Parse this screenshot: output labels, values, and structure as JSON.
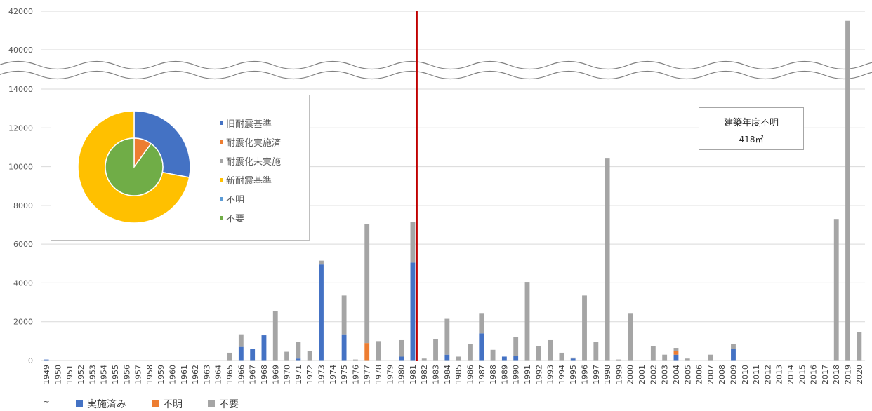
{
  "chart_data": {
    "type": "bar",
    "stacked": true,
    "title": "",
    "xlabel": "",
    "ylabel": "",
    "grid": true,
    "legend_position": "bottom-left",
    "y_lower_range": [
      0,
      14000
    ],
    "y_upper_range": [
      40000,
      42000
    ],
    "y_axis_break": true,
    "y_ticks_lower": [
      "0",
      "2000",
      "4000",
      "6000",
      "8000",
      "10000",
      "12000",
      "14000"
    ],
    "y_ticks_upper": [
      "40000",
      "42000"
    ],
    "first_category_suffix": "~",
    "categories": [
      "1949",
      "1950",
      "1951",
      "1952",
      "1953",
      "1954",
      "1955",
      "1956",
      "1957",
      "1958",
      "1959",
      "1960",
      "1961",
      "1962",
      "1963",
      "1964",
      "1965",
      "1966",
      "1967",
      "1968",
      "1969",
      "1970",
      "1971",
      "1972",
      "1973",
      "1974",
      "1975",
      "1976",
      "1977",
      "1978",
      "1979",
      "1980",
      "1981",
      "1982",
      "1983",
      "1984",
      "1985",
      "1986",
      "1987",
      "1988",
      "1989",
      "1990",
      "1991",
      "1992",
      "1993",
      "1994",
      "1995",
      "1996",
      "1997",
      "1998",
      "1999",
      "2000",
      "2001",
      "2002",
      "2003",
      "2004",
      "2005",
      "2006",
      "2007",
      "2008",
      "2009",
      "2010",
      "2011",
      "2012",
      "2013",
      "2014",
      "2015",
      "2016",
      "2017",
      "2018",
      "2019",
      "2020"
    ],
    "series": [
      {
        "name": "実施済み",
        "color": "#4472c4",
        "values": [
          50,
          0,
          0,
          0,
          0,
          0,
          0,
          0,
          0,
          0,
          0,
          0,
          0,
          0,
          0,
          0,
          0,
          700,
          600,
          1300,
          0,
          0,
          100,
          0,
          4950,
          0,
          1350,
          0,
          0,
          0,
          0,
          200,
          5050,
          0,
          0,
          300,
          0,
          0,
          1400,
          0,
          200,
          250,
          0,
          0,
          0,
          0,
          100,
          0,
          0,
          0,
          0,
          0,
          0,
          0,
          0,
          300,
          0,
          0,
          0,
          0,
          600,
          0,
          0,
          0,
          0,
          0,
          0,
          0,
          0,
          0,
          0,
          0
        ]
      },
      {
        "name": "不明",
        "color": "#ed7d31",
        "values": [
          0,
          0,
          0,
          0,
          0,
          0,
          0,
          0,
          0,
          0,
          0,
          0,
          0,
          0,
          0,
          0,
          0,
          0,
          0,
          0,
          0,
          0,
          0,
          0,
          0,
          0,
          0,
          0,
          900,
          0,
          0,
          0,
          0,
          0,
          0,
          0,
          0,
          0,
          0,
          0,
          0,
          0,
          0,
          0,
          0,
          0,
          0,
          0,
          0,
          0,
          0,
          0,
          0,
          0,
          0,
          200,
          0,
          0,
          0,
          0,
          0,
          0,
          0,
          0,
          0,
          0,
          0,
          0,
          0,
          0,
          0,
          0
        ]
      },
      {
        "name": "不要",
        "color": "#a5a5a5",
        "values": [
          0,
          0,
          0,
          0,
          0,
          0,
          0,
          0,
          0,
          0,
          0,
          0,
          0,
          0,
          0,
          0,
          400,
          650,
          0,
          0,
          2550,
          450,
          850,
          500,
          200,
          0,
          2000,
          50,
          6150,
          1000,
          0,
          850,
          2100,
          100,
          1100,
          1850,
          200,
          850,
          1050,
          550,
          0,
          950,
          4050,
          750,
          1050,
          400,
          50,
          3350,
          950,
          10450,
          50,
          2450,
          0,
          750,
          300,
          150,
          100,
          0,
          300,
          0,
          250,
          0,
          0,
          0,
          0,
          0,
          0,
          0,
          0,
          7300,
          41500,
          1450
        ]
      }
    ],
    "reference_line": {
      "after_category": "1981",
      "color": "#c00000"
    },
    "inset_pie": {
      "type": "pie",
      "outer_ring": [
        {
          "name": "旧耐震基準",
          "value": 28,
          "color": "#4472c4"
        },
        {
          "name": "新耐震基準",
          "value": 72,
          "color": "#ffc000"
        }
      ],
      "inner_ring": [
        {
          "name": "耐震化実施済",
          "value": 10,
          "color": "#ed7d31"
        },
        {
          "name": "耐震化未実施",
          "value": 0,
          "color": "#a5a5a5"
        },
        {
          "name": "不明",
          "value": 0,
          "color": "#5b9bd5"
        },
        {
          "name": "不要",
          "value": 90,
          "color": "#70ad47"
        }
      ],
      "legend": [
        {
          "label": "旧耐震基準",
          "color": "#4472c4"
        },
        {
          "label": "耐震化実施済",
          "color": "#ed7d31"
        },
        {
          "label": "耐震化未実施",
          "color": "#a5a5a5"
        },
        {
          "label": "新耐震基準",
          "color": "#ffc000"
        },
        {
          "label": "不明",
          "color": "#5b9bd5"
        },
        {
          "label": "不要",
          "color": "#70ad47"
        }
      ]
    },
    "annotation": {
      "line1": "建築年度不明",
      "line2": "418㎡"
    }
  },
  "legend": [
    {
      "label": "実施済み",
      "color": "#4472c4"
    },
    {
      "label": "不明",
      "color": "#ed7d31"
    },
    {
      "label": "不要",
      "color": "#a5a5a5"
    }
  ]
}
